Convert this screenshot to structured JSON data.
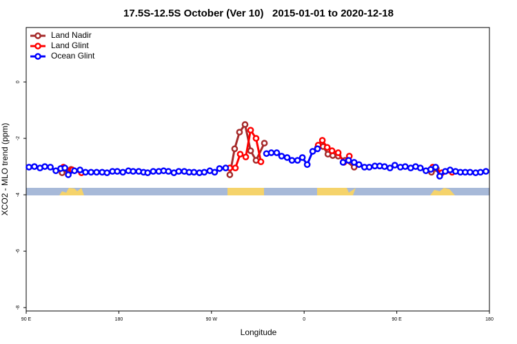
{
  "chart_data": {
    "type": "line",
    "title": "17.5S-12.5S October (Ver 10)   2015-01-01 to 2020-12-18",
    "x_label": "Longitude",
    "y_label": "XCO2 - MLO trend (ppm)",
    "xlim": [
      90,
      540
    ],
    "ylim": [
      -8.12,
      1.93
    ],
    "xticks": [
      {
        "value": 90,
        "label": "90 E"
      },
      180,
      {
        "value": 270,
        "label": "90 W"
      },
      {
        "value": 360,
        "label": "0"
      },
      {
        "value": 450,
        "label": "90 E"
      },
      180
    ],
    "yticks": [
      -8,
      -6,
      -4,
      -2,
      0
    ],
    "legend": "top-left",
    "series": [
      {
        "name": "Land Nadir",
        "color": "#a52a2a",
        "x": [
          124.9,
          133.6,
          null,
          287.8,
          292.5,
          297.2,
          302.6,
          308.0,
          313.3,
          321.4,
          null,
          373.0,
          378.4,
          383.1,
          387.8,
          393.1,
          399.8,
          408.6,
          null,
          483.7,
          488.4
        ],
        "values": [
          -3.22,
          -3.1,
          null,
          -3.29,
          -2.37,
          -1.78,
          -1.51,
          -2.44,
          -2.78,
          -2.17,
          null,
          -2.34,
          -2.29,
          -2.56,
          -2.61,
          -2.63,
          -2.78,
          -3.02,
          null,
          -3.2,
          -3.07
        ]
      },
      {
        "name": "Land Glint",
        "color": "#ff0000",
        "x": [
          126.2,
          134.9,
          143.7,
          null,
          287.8,
          293.2,
          297.9,
          303.3,
          308.0,
          313.3,
          318.0,
          null,
          373.7,
          377.7,
          382.4,
          387.1,
          393.1,
          398.5,
          403.9,
          null,
          485.0,
          493.7,
          503.8
        ],
        "values": [
          -3.02,
          -3.12,
          -3.22,
          null,
          -3.05,
          -3.05,
          -2.56,
          -2.66,
          -1.71,
          -2.0,
          -2.83,
          null,
          -2.24,
          -2.07,
          -2.32,
          -2.44,
          -2.51,
          -2.85,
          -2.63,
          null,
          -3.02,
          -3.22,
          -3.2
        ]
      },
      {
        "name": "Ocean Glint",
        "color": "#0000ff",
        "x": [
          92.7,
          98.0,
          103.4,
          108.1,
          113.5,
          118.8,
          123.5,
          127.6,
          130.9,
          136.9,
          142.3,
          147.6,
          153.0,
          158.4,
          163.8,
          168.5,
          173.8,
          178.5,
          183.9,
          189.3,
          193.9,
          199.3,
          204.0,
          208.0,
          213.4,
          218.8,
          223.5,
          228.2,
          233.5,
          238.2,
          243.6,
          248.3,
          253.0,
          258.3,
          263.0,
          268.4,
          273.1,
          277.8,
          283.8,
          null,
          323.4,
          328.1,
          333.4,
          338.1,
          343.5,
          348.2,
          353.6,
          358.3,
          363.0,
          368.3,
          373.0,
          null,
          397.8,
          403.2,
          408.6,
          413.3,
          418.6,
          423.3,
          428.7,
          433.4,
          438.1,
          443.4,
          448.1,
          453.5,
          458.2,
          463.5,
          468.3,
          472.9,
          478.3,
          483.0,
          487.7,
          491.7,
          497.1,
          501.8,
          507.1,
          511.8,
          516.5,
          521.2,
          526.6,
          531.3,
          536.6
        ],
        "values": [
          -3.02,
          -3.0,
          -3.05,
          -3.0,
          -3.02,
          -3.15,
          -3.07,
          -3.05,
          -3.29,
          -3.15,
          -3.12,
          -3.2,
          -3.2,
          -3.2,
          -3.2,
          -3.22,
          -3.17,
          -3.17,
          -3.2,
          -3.15,
          -3.17,
          -3.17,
          -3.2,
          -3.22,
          -3.17,
          -3.17,
          -3.15,
          -3.17,
          -3.22,
          -3.17,
          -3.17,
          -3.2,
          -3.2,
          -3.22,
          -3.2,
          -3.15,
          -3.2,
          -3.07,
          -3.05,
          null,
          -2.54,
          -2.51,
          -2.51,
          -2.63,
          -2.68,
          -2.78,
          -2.78,
          -2.68,
          -2.93,
          -2.46,
          -2.37,
          null,
          -2.85,
          -2.78,
          -2.85,
          -2.93,
          -3.02,
          -3.02,
          -2.98,
          -2.98,
          -3.0,
          -3.05,
          -2.95,
          -3.02,
          -3.0,
          -3.05,
          -3.0,
          -3.05,
          -3.15,
          -3.1,
          -3.02,
          -3.34,
          -3.17,
          -3.12,
          -3.17,
          -3.2,
          -3.2,
          -3.2,
          -3.22,
          -3.2,
          -3.17
        ]
      }
    ]
  }
}
